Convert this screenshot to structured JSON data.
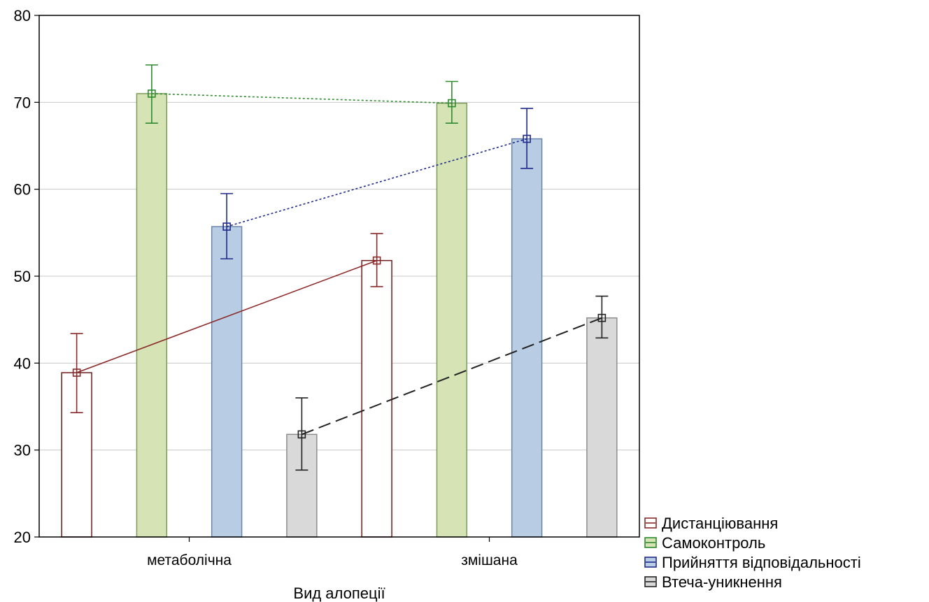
{
  "chart_data": {
    "type": "bar",
    "xlabel": "Вид алопеції",
    "ylabel": "",
    "ylim": [
      20,
      80
    ],
    "yticks": [
      20,
      30,
      40,
      50,
      60,
      70,
      80
    ],
    "grid": true,
    "legend_position": "bottom-right",
    "categories": [
      "метаболічна",
      "змішана"
    ],
    "series": [
      {
        "name": "Дистанціювання",
        "values": [
          38.9,
          51.8
        ],
        "err_low": [
          34.3,
          48.8
        ],
        "err_high": [
          43.4,
          54.9
        ],
        "bar_fill": "#ffffff",
        "bar_stroke": "#6b1a1a",
        "line_color": "#8b2a2a",
        "line_style": "solid"
      },
      {
        "name": "Самоконтроль",
        "values": [
          71.0,
          69.9
        ],
        "err_low": [
          67.6,
          67.6
        ],
        "err_high": [
          74.3,
          72.4
        ],
        "bar_fill": "#d5e3b5",
        "bar_stroke": "#7d9a5a",
        "line_color": "#2e8b2e",
        "line_style": "dotted"
      },
      {
        "name": "Прийняття відповідальності",
        "values": [
          55.7,
          65.8
        ],
        "err_low": [
          52.0,
          62.4
        ],
        "err_high": [
          59.5,
          69.3
        ],
        "bar_fill": "#b8cce4",
        "bar_stroke": "#6a85a8",
        "line_color": "#1f2a8a",
        "line_style": "dotted"
      },
      {
        "name": "Втеча-уникнення",
        "values": [
          31.8,
          45.2
        ],
        "err_low": [
          27.7,
          42.9
        ],
        "err_high": [
          36.0,
          47.7
        ],
        "bar_fill": "#d9d9d9",
        "bar_stroke": "#8c8c8c",
        "line_color": "#222222",
        "line_style": "dashed"
      }
    ]
  }
}
